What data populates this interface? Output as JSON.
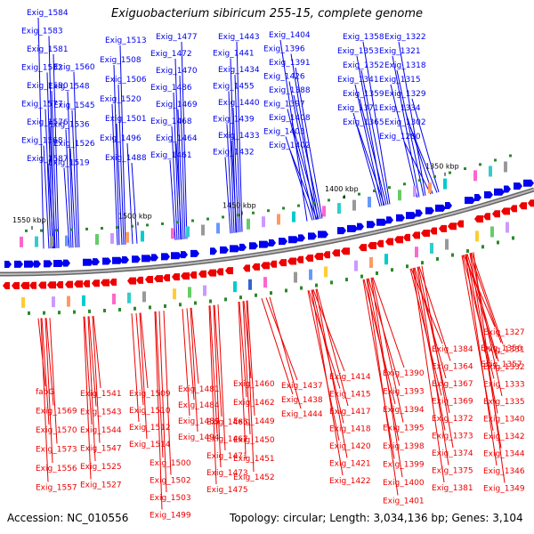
{
  "title": "Exiguobacterium sibiricum 255-15, complete genome",
  "footer": {
    "accession": "Accession: NC_010556",
    "summary": "Topology: circular; Length: 3,034,136 bp; Genes: 3,104"
  },
  "colors": {
    "forward": "#0000ee",
    "reverse": "#ee0000",
    "backbone": "#888888",
    "tick_text": "#000000"
  },
  "kbp_ticks": [
    "1550 kbp",
    "1500 kbp",
    "1450 kbp",
    "1400 kbp",
    "1350 kbp"
  ],
  "top_labels": [
    "Exig_1584",
    "Exig_1583",
    "Exig_1581",
    "Exig_1582",
    "Exig_1580",
    "Exig_1577",
    "Exig_1576",
    "Exig_1568",
    "Exig_1587",
    "Exig_1560",
    "Exig_1548",
    "Exig_1545",
    "Exig_1536",
    "Exig_1526",
    "Exig_1519",
    "Exig_1513",
    "Exig_1508",
    "Exig_1506",
    "Exig_1520",
    "Exig_1501",
    "Exig_1496",
    "Exig_1488",
    "Exig_1477",
    "Exig_1472",
    "Exig_1470",
    "Exig_1486",
    "Exig_1469",
    "Exig_1468",
    "Exig_1464",
    "Exig_1461",
    "Exig_1443",
    "Exig_1441",
    "Exig_1434",
    "Exig_1455",
    "Exig_1440",
    "Exig_1439",
    "Exig_1433",
    "Exig_1432",
    "Exig_1404",
    "Exig_1396",
    "Exig_1391",
    "Exig_1426",
    "Exig_1388",
    "Exig_1397",
    "Exig_1408",
    "Exig_1403",
    "Exig_1402",
    "Exig_1358",
    "Exig_1353",
    "Exig_1352",
    "Exig_1341",
    "Exig_1359",
    "Exig_1371",
    "Exig_1365",
    "Exig_1322",
    "Exig_1321",
    "Exig_1318",
    "Exig_1315",
    "Exig_1329",
    "Exig_1334",
    "Exig_1302",
    "Exig_1280"
  ],
  "bottom_labels": [
    "fabG",
    "Exig_1569",
    "Exig_1570",
    "Exig_1573",
    "Exig_1556",
    "Exig_1557",
    "Exig_1541",
    "Exig_1543",
    "Exig_1544",
    "Exig_1547",
    "Exig_1525",
    "Exig_1527",
    "Exig_1509",
    "Exig_1510",
    "Exig_1512",
    "Exig_1514",
    "Exig_1500",
    "Exig_1502",
    "Exig_1503",
    "Exig_1499",
    "Exig_1481",
    "Exig_1484",
    "Exig_1489",
    "Exig_1494",
    "Exig_1465",
    "Exig_1467",
    "Exig_1471",
    "Exig_1473",
    "Exig_1475",
    "Exig_1460",
    "Exig_1462",
    "Exig_1449",
    "Exig_1450",
    "Exig_1451",
    "Exig_1452",
    "Exig_1437",
    "Exig_1438",
    "Exig_1444",
    "Exig_1414",
    "Exig_1415",
    "Exig_1417",
    "Exig_1418",
    "Exig_1420",
    "Exig_1421",
    "Exig_1422",
    "Exig_1390",
    "Exig_1393",
    "Exig_1394",
    "Exig_1395",
    "Exig_1398",
    "Exig_1399",
    "Exig_1400",
    "Exig_1401",
    "Exig_1384",
    "Exig_1364",
    "Exig_1367",
    "Exig_1369",
    "Exig_1372",
    "Exig_1373",
    "Exig_1374",
    "Exig_1375",
    "Exig_1381",
    "Exig_1356",
    "Exig_1357",
    "Exig_1327",
    "Exig_1331",
    "Exig_1332",
    "Exig_1333",
    "Exig_1335",
    "Exig_1340",
    "Exig_1342",
    "Exig_1344",
    "Exig_1346",
    "Exig_1349"
  ]
}
